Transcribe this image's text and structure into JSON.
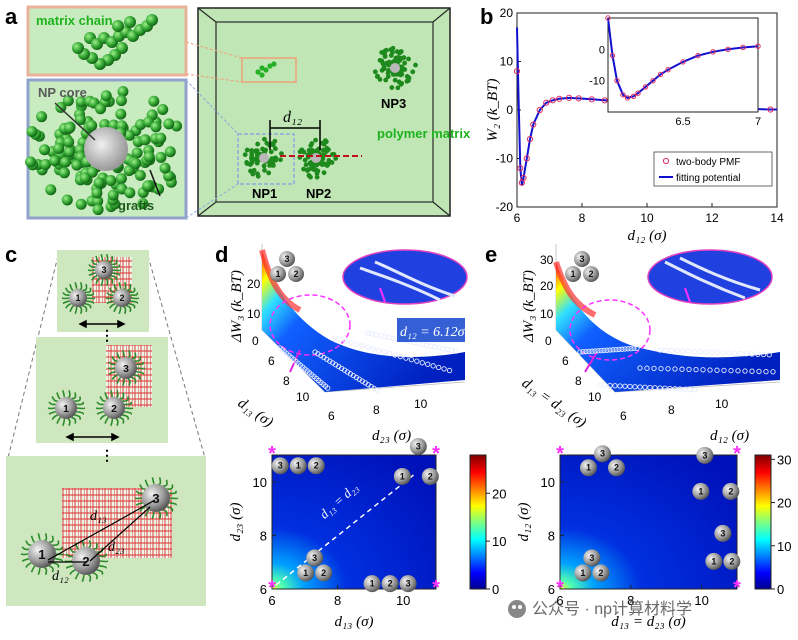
{
  "panels": {
    "a": "a",
    "b": "b",
    "c": "c",
    "d": "d",
    "e": "e"
  },
  "panel_a": {
    "matrix_chain": "matrix chain",
    "np_core": "NP core",
    "grafts": "grafts",
    "d12": "d₁₂",
    "np1": "NP1",
    "np2": "NP2",
    "np3": "NP3",
    "polymer_matrix": "polymer matrix"
  },
  "panel_c": {
    "n1": "1",
    "n2": "2",
    "n3": "3",
    "d13": "d₁₃",
    "d23": "d₂₃",
    "d12": "d₁₂"
  },
  "panel_d": {
    "zlabel": "ΔW₃ (k_BT)",
    "xlabel3d": "d₂₃ (σ)",
    "ylabel3d": "d₁₃ (σ)",
    "annotation": "d₁₂ = 6.12σ",
    "map_ylabel": "d₂₃ (σ)",
    "map_xlabel": "d₁₃ (σ)",
    "diag_label": "d₁₃ = d₂₃"
  },
  "panel_e": {
    "zlabel": "ΔW₃ (k_BT)",
    "xlabel3d": "d₁₂ (σ)",
    "ylabel3d": "d₁₃ = d₂₃ (σ)",
    "map_ylabel": "d₁₂ (σ)",
    "map_xlabel": "d₁₃ = d₂₃ (σ)"
  },
  "watermark": "公众号 · np计算材料学",
  "chart_data": [
    {
      "id": "b",
      "type": "line",
      "title": "",
      "xlabel": "d₁₂ (σ)",
      "ylabel": "W₂ (k_BT)",
      "xlim": [
        6,
        14
      ],
      "ylim": [
        -20,
        20
      ],
      "xticks": [
        6,
        8,
        10,
        12,
        14
      ],
      "yticks": [
        -20,
        -10,
        0,
        10,
        20
      ],
      "legend": [
        "two-body PMF",
        "fitting potential"
      ],
      "legend_position": "bottom-right",
      "series": [
        {
          "name": "two-body PMF",
          "style": "markers",
          "x": [
            6.0,
            6.1,
            6.15,
            6.2,
            6.3,
            6.4,
            6.5,
            6.7,
            6.9,
            7.1,
            7.3,
            7.6,
            7.9,
            8.3,
            8.7,
            9.2,
            9.7,
            10.2,
            10.8,
            11.4,
            12.0,
            12.6,
            13.2,
            13.8
          ],
          "y": [
            8,
            -12,
            -15,
            -14,
            -10,
            -6,
            -3,
            0,
            1.5,
            2,
            2.3,
            2.5,
            2.4,
            2.2,
            2.0,
            1.7,
            1.3,
            1.0,
            0.7,
            0.5,
            0.4,
            0.3,
            0.2,
            0.1
          ]
        },
        {
          "name": "fitting potential",
          "style": "line",
          "x": [
            6.0,
            6.05,
            6.1,
            6.15,
            6.2,
            6.3,
            6.4,
            6.5,
            6.7,
            6.9,
            7.1,
            7.3,
            7.6,
            7.9,
            8.3,
            8.7,
            9.2,
            9.7,
            10.2,
            10.8,
            11.4,
            12.0,
            12.6,
            13.2,
            13.8,
            14.0
          ],
          "y": [
            17,
            2,
            -12,
            -15.5,
            -14,
            -10,
            -6,
            -3,
            0,
            1.5,
            2,
            2.3,
            2.5,
            2.4,
            2.2,
            2.0,
            1.7,
            1.3,
            1.0,
            0.7,
            0.5,
            0.4,
            0.3,
            0.2,
            0.1,
            0.1
          ]
        }
      ],
      "inset": {
        "xlim": [
          6,
          7
        ],
        "ylim": [
          -20,
          10
        ],
        "xticks": [
          6.5,
          7
        ],
        "yticks": [
          -10,
          0
        ],
        "x": [
          6.0,
          6.03,
          6.06,
          6.1,
          6.13,
          6.17,
          6.2,
          6.25,
          6.3,
          6.35,
          6.4,
          6.5,
          6.6,
          6.7,
          6.8,
          6.9,
          7.0
        ],
        "y": [
          10,
          -2,
          -10,
          -14.5,
          -15.5,
          -15,
          -14,
          -12,
          -10,
          -8,
          -6.5,
          -4,
          -2,
          -0.8,
          0,
          0.6,
          1.0
        ]
      }
    },
    {
      "id": "d-map",
      "type": "heatmap",
      "xlabel": "d₁₃ (σ)",
      "ylabel": "d₂₃ (σ)",
      "xlim": [
        6,
        11
      ],
      "ylim": [
        6,
        11
      ],
      "xticks": [
        6,
        8,
        10
      ],
      "yticks": [
        6,
        8,
        10
      ],
      "colorbar": {
        "min": 0,
        "max": 28,
        "ticks": [
          0,
          10,
          20
        ]
      }
    },
    {
      "id": "e-map",
      "type": "heatmap",
      "xlabel": "d₁₃ = d₂₃ (σ)",
      "ylabel": "d₁₂ (σ)",
      "xlim": [
        6,
        11
      ],
      "ylim": [
        6,
        11
      ],
      "xticks": [
        6,
        8,
        10
      ],
      "yticks": [
        6,
        8,
        10
      ],
      "colorbar": {
        "min": 0,
        "max": 31,
        "ticks": [
          0,
          10,
          20,
          30
        ]
      }
    },
    {
      "id": "d-surface",
      "type": "area",
      "zlabel": "ΔW₃ (k_BT)",
      "zticks": [
        0,
        10,
        20
      ],
      "xlabel": "d₂₃ (σ)",
      "xticks": [
        6,
        8,
        10
      ],
      "ylabel": "d₁₃ (σ)",
      "yticks": [
        6,
        8,
        10
      ]
    },
    {
      "id": "e-surface",
      "type": "area",
      "zlabel": "ΔW₃ (k_BT)",
      "zticks": [
        0,
        10,
        20,
        30
      ],
      "xlabel": "d₁₂ (σ)",
      "xticks": [
        6,
        8,
        10
      ],
      "ylabel": "d₁₃ = d₂₃ (σ)",
      "yticks": [
        6,
        8,
        10
      ]
    }
  ]
}
